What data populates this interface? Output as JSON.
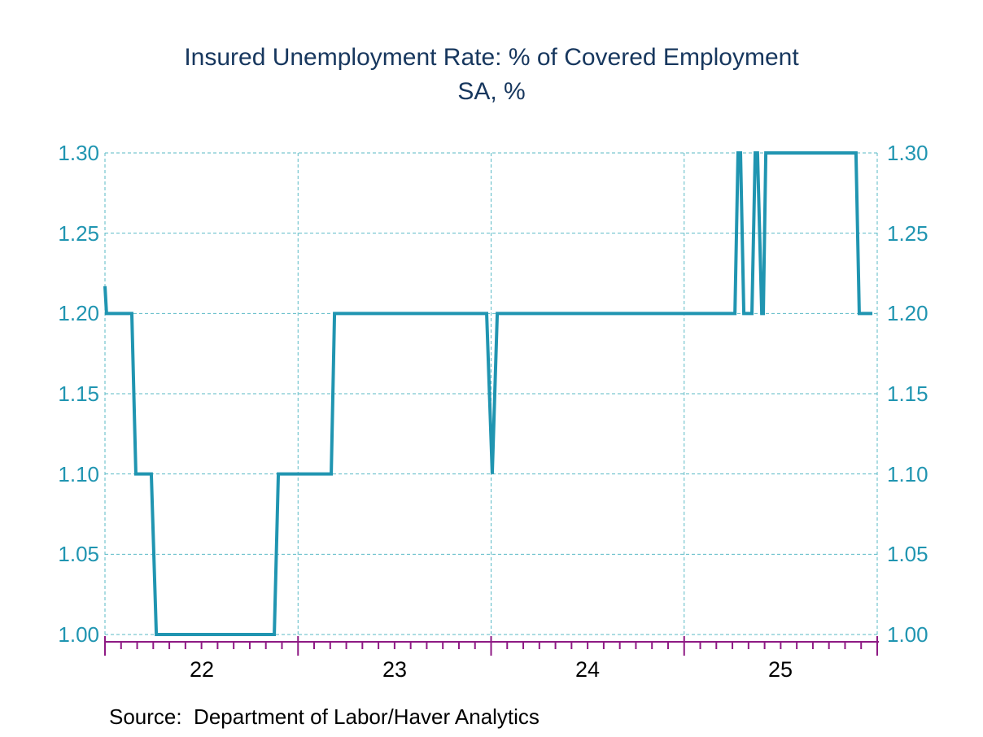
{
  "title": {
    "line1": "Insured Unemployment Rate: % of Covered Employment",
    "line2": "SA, %"
  },
  "source_note": "Source:  Department of Labor/Haver Analytics",
  "colors": {
    "line": "#2095B1",
    "grid": "#5ABAC6",
    "axis": "#8E1A84",
    "title_text": "#17375E",
    "y_tick_text": "#2095B1",
    "x_tick_text": "#000000"
  },
  "chart_data": {
    "type": "line",
    "title": "Insured Unemployment Rate: % of Covered Employment",
    "subtitle": "SA, %",
    "legend": "none",
    "grid": "dashed, both directions",
    "x_axis": {
      "domain": [
        2022,
        2026
      ],
      "year_ticks": [
        2022,
        2023,
        2024,
        2025,
        2026
      ],
      "minor_tick_interval": "monthly",
      "labels": [
        {
          "year": 2022,
          "label": "22"
        },
        {
          "year": 2023,
          "label": "23"
        },
        {
          "year": 2024,
          "label": "24"
        },
        {
          "year": 2025,
          "label": "25"
        }
      ]
    },
    "y_axis": {
      "domain": [
        1.0,
        1.3
      ],
      "tick_step": 0.05,
      "sides": [
        "left",
        "right"
      ],
      "ticks": [
        {
          "value": 1.3,
          "label": "1.30"
        },
        {
          "value": 1.25,
          "label": "1.25"
        },
        {
          "value": 1.2,
          "label": "1.20"
        },
        {
          "value": 1.15,
          "label": "1.15"
        },
        {
          "value": 1.1,
          "label": "1.10"
        },
        {
          "value": 1.05,
          "label": "1.05"
        },
        {
          "value": 1.0,
          "label": "1.00"
        }
      ]
    },
    "series": [
      {
        "name": "Insured Unemployment Rate (SA, %)",
        "points": [
          [
            2022.0,
            1.217
          ],
          [
            2022.008,
            1.2
          ],
          [
            2022.139,
            1.2
          ],
          [
            2022.16,
            1.1
          ],
          [
            2022.24,
            1.1
          ],
          [
            2022.266,
            1.0
          ],
          [
            2022.877,
            1.0
          ],
          [
            2022.898,
            1.1
          ],
          [
            2023.172,
            1.1
          ],
          [
            2023.189,
            1.2
          ],
          [
            2023.977,
            1.2
          ],
          [
            2024.006,
            1.1
          ],
          [
            2024.032,
            1.2
          ],
          [
            2025.263,
            1.2
          ],
          [
            2025.279,
            1.3
          ],
          [
            2025.292,
            1.3
          ],
          [
            2025.309,
            1.2
          ],
          [
            2025.351,
            1.2
          ],
          [
            2025.368,
            1.3
          ],
          [
            2025.38,
            1.3
          ],
          [
            2025.402,
            1.2
          ],
          [
            2025.41,
            1.2
          ],
          [
            2025.423,
            1.3
          ],
          [
            2025.89,
            1.3
          ],
          [
            2025.907,
            1.2
          ],
          [
            2025.975,
            1.2
          ]
        ]
      }
    ]
  }
}
